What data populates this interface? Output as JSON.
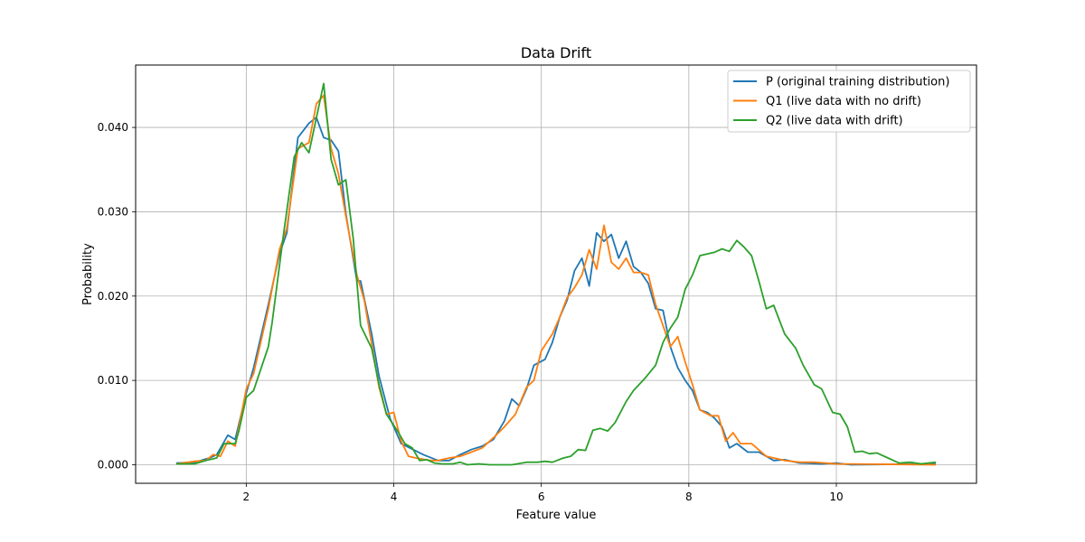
{
  "chart_data": {
    "type": "line",
    "title": "Data Drift",
    "xlabel": "Feature value",
    "ylabel": "Probability",
    "xlim": [
      0.5,
      11.9
    ],
    "ylim": [
      -0.0022,
      0.0474
    ],
    "xticks": [
      2,
      4,
      6,
      8,
      10
    ],
    "xtick_labels": [
      "2",
      "4",
      "6",
      "8",
      "10"
    ],
    "yticks": [
      0.0,
      0.01,
      0.02,
      0.03,
      0.04
    ],
    "ytick_labels": [
      "0.000",
      "0.010",
      "0.020",
      "0.030",
      "0.040"
    ],
    "grid": true,
    "legend_position": "top-right",
    "series": [
      {
        "name": "P (original training distribution)",
        "color": "#1f77b4",
        "points": [
          [
            1.05,
            0.0002
          ],
          [
            1.3,
            0.0003
          ],
          [
            1.5,
            0.0008
          ],
          [
            1.6,
            0.0012
          ],
          [
            1.75,
            0.0035
          ],
          [
            1.85,
            0.003
          ],
          [
            2.0,
            0.0085
          ],
          [
            2.1,
            0.0115
          ],
          [
            2.3,
            0.019
          ],
          [
            2.45,
            0.025
          ],
          [
            2.55,
            0.0275
          ],
          [
            2.7,
            0.0388
          ],
          [
            2.85,
            0.0405
          ],
          [
            2.95,
            0.0412
          ],
          [
            3.05,
            0.0388
          ],
          [
            3.15,
            0.0385
          ],
          [
            3.25,
            0.0372
          ],
          [
            3.35,
            0.0298
          ],
          [
            3.5,
            0.0218
          ],
          [
            3.55,
            0.0218
          ],
          [
            3.7,
            0.0155
          ],
          [
            3.8,
            0.0105
          ],
          [
            3.95,
            0.0055
          ],
          [
            4.1,
            0.0025
          ],
          [
            4.4,
            0.0012
          ],
          [
            4.6,
            0.0005
          ],
          [
            4.75,
            0.0005
          ],
          [
            4.9,
            0.0012
          ],
          [
            5.05,
            0.0018
          ],
          [
            5.2,
            0.0022
          ],
          [
            5.35,
            0.003
          ],
          [
            5.5,
            0.0052
          ],
          [
            5.6,
            0.0078
          ],
          [
            5.7,
            0.007
          ],
          [
            5.8,
            0.009
          ],
          [
            5.9,
            0.0118
          ],
          [
            6.05,
            0.0125
          ],
          [
            6.15,
            0.0145
          ],
          [
            6.25,
            0.0175
          ],
          [
            6.35,
            0.0195
          ],
          [
            6.45,
            0.023
          ],
          [
            6.55,
            0.0245
          ],
          [
            6.65,
            0.0212
          ],
          [
            6.75,
            0.0275
          ],
          [
            6.85,
            0.0265
          ],
          [
            6.95,
            0.0273
          ],
          [
            7.05,
            0.0245
          ],
          [
            7.15,
            0.0265
          ],
          [
            7.25,
            0.0235
          ],
          [
            7.35,
            0.0228
          ],
          [
            7.45,
            0.0215
          ],
          [
            7.55,
            0.0185
          ],
          [
            7.65,
            0.0183
          ],
          [
            7.75,
            0.014
          ],
          [
            7.85,
            0.0115
          ],
          [
            7.95,
            0.01
          ],
          [
            8.05,
            0.0088
          ],
          [
            8.15,
            0.0065
          ],
          [
            8.25,
            0.0062
          ],
          [
            8.35,
            0.0055
          ],
          [
            8.45,
            0.0045
          ],
          [
            8.55,
            0.002
          ],
          [
            8.65,
            0.0025
          ],
          [
            8.8,
            0.0015
          ],
          [
            8.95,
            0.0015
          ],
          [
            9.15,
            0.0005
          ],
          [
            9.3,
            0.0006
          ],
          [
            9.5,
            0.0002
          ],
          [
            9.8,
            0.0001
          ],
          [
            10.0,
            0.0002
          ],
          [
            10.2,
            0.0
          ],
          [
            11.35,
            0.0001
          ]
        ]
      },
      {
        "name": "Q1 (live data with no drift)",
        "color": "#ff7f0e",
        "points": [
          [
            1.05,
            0.0001
          ],
          [
            1.3,
            0.0004
          ],
          [
            1.45,
            0.0005
          ],
          [
            1.55,
            0.0012
          ],
          [
            1.65,
            0.001
          ],
          [
            1.75,
            0.0028
          ],
          [
            1.85,
            0.0022
          ],
          [
            2.0,
            0.009
          ],
          [
            2.1,
            0.0108
          ],
          [
            2.3,
            0.0185
          ],
          [
            2.45,
            0.0255
          ],
          [
            2.55,
            0.028
          ],
          [
            2.7,
            0.0375
          ],
          [
            2.85,
            0.0382
          ],
          [
            2.95,
            0.0428
          ],
          [
            3.05,
            0.0438
          ],
          [
            3.15,
            0.0375
          ],
          [
            3.25,
            0.0345
          ],
          [
            3.35,
            0.0295
          ],
          [
            3.5,
            0.0225
          ],
          [
            3.6,
            0.0195
          ],
          [
            3.8,
            0.0092
          ],
          [
            3.9,
            0.006
          ],
          [
            4.0,
            0.0062
          ],
          [
            4.1,
            0.0028
          ],
          [
            4.2,
            0.001
          ],
          [
            4.3,
            0.0008
          ],
          [
            4.5,
            0.0005
          ],
          [
            4.6,
            0.0005
          ],
          [
            4.75,
            0.0008
          ],
          [
            4.9,
            0.001
          ],
          [
            5.05,
            0.0015
          ],
          [
            5.2,
            0.002
          ],
          [
            5.35,
            0.0032
          ],
          [
            5.5,
            0.0045
          ],
          [
            5.65,
            0.006
          ],
          [
            5.8,
            0.0092
          ],
          [
            5.9,
            0.01
          ],
          [
            6.0,
            0.0135
          ],
          [
            6.15,
            0.0155
          ],
          [
            6.25,
            0.0175
          ],
          [
            6.35,
            0.0198
          ],
          [
            6.45,
            0.021
          ],
          [
            6.55,
            0.0225
          ],
          [
            6.65,
            0.0255
          ],
          [
            6.75,
            0.0232
          ],
          [
            6.85,
            0.0284
          ],
          [
            6.95,
            0.024
          ],
          [
            7.05,
            0.0232
          ],
          [
            7.15,
            0.0245
          ],
          [
            7.25,
            0.0228
          ],
          [
            7.35,
            0.0228
          ],
          [
            7.45,
            0.0225
          ],
          [
            7.55,
            0.019
          ],
          [
            7.65,
            0.0165
          ],
          [
            7.75,
            0.014
          ],
          [
            7.85,
            0.0152
          ],
          [
            7.95,
            0.0122
          ],
          [
            8.05,
            0.0095
          ],
          [
            8.15,
            0.0065
          ],
          [
            8.3,
            0.0058
          ],
          [
            8.4,
            0.0058
          ],
          [
            8.5,
            0.0028
          ],
          [
            8.6,
            0.0038
          ],
          [
            8.7,
            0.0025
          ],
          [
            8.85,
            0.0025
          ],
          [
            9.05,
            0.001
          ],
          [
            9.3,
            0.0005
          ],
          [
            9.5,
            0.0003
          ],
          [
            9.7,
            0.0003
          ],
          [
            10.0,
            0.0001
          ],
          [
            11.35,
            0.0
          ]
        ]
      },
      {
        "name": "Q2 (live data with drift)",
        "color": "#2ca02c",
        "points": [
          [
            1.05,
            0.0001
          ],
          [
            1.3,
            0.0001
          ],
          [
            1.45,
            0.0005
          ],
          [
            1.6,
            0.0008
          ],
          [
            1.7,
            0.0025
          ],
          [
            1.85,
            0.0025
          ],
          [
            1.9,
            0.004
          ],
          [
            2.0,
            0.008
          ],
          [
            2.1,
            0.0088
          ],
          [
            2.3,
            0.014
          ],
          [
            2.35,
            0.0168
          ],
          [
            2.5,
            0.027
          ],
          [
            2.65,
            0.0365
          ],
          [
            2.75,
            0.0382
          ],
          [
            2.85,
            0.037
          ],
          [
            3.05,
            0.0452
          ],
          [
            3.15,
            0.0362
          ],
          [
            3.25,
            0.0332
          ],
          [
            3.35,
            0.0338
          ],
          [
            3.45,
            0.0268
          ],
          [
            3.55,
            0.0165
          ],
          [
            3.7,
            0.0138
          ],
          [
            3.8,
            0.0095
          ],
          [
            3.9,
            0.006
          ],
          [
            4.05,
            0.004
          ],
          [
            4.15,
            0.0025
          ],
          [
            4.25,
            0.002
          ],
          [
            4.35,
            0.0005
          ],
          [
            4.45,
            0.0006
          ],
          [
            4.55,
            0.0002
          ],
          [
            4.65,
            0.0001
          ],
          [
            4.8,
            0.0001
          ],
          [
            4.9,
            0.0003
          ],
          [
            5.0,
            0.0
          ],
          [
            5.15,
            0.0001
          ],
          [
            5.3,
            0.0
          ],
          [
            5.6,
            0.0
          ],
          [
            5.8,
            0.0003
          ],
          [
            5.95,
            0.0003
          ],
          [
            6.05,
            0.0004
          ],
          [
            6.15,
            0.0003
          ],
          [
            6.3,
            0.0008
          ],
          [
            6.4,
            0.001
          ],
          [
            6.5,
            0.0018
          ],
          [
            6.6,
            0.0017
          ],
          [
            6.7,
            0.0041
          ],
          [
            6.8,
            0.0043
          ],
          [
            6.9,
            0.004
          ],
          [
            7.0,
            0.005
          ],
          [
            7.15,
            0.0075
          ],
          [
            7.25,
            0.0088
          ],
          [
            7.4,
            0.0102
          ],
          [
            7.55,
            0.0118
          ],
          [
            7.65,
            0.0145
          ],
          [
            7.75,
            0.0162
          ],
          [
            7.85,
            0.0175
          ],
          [
            7.95,
            0.0208
          ],
          [
            8.05,
            0.0225
          ],
          [
            8.15,
            0.0248
          ],
          [
            8.25,
            0.025
          ],
          [
            8.35,
            0.0252
          ],
          [
            8.45,
            0.0256
          ],
          [
            8.55,
            0.0253
          ],
          [
            8.65,
            0.0266
          ],
          [
            8.75,
            0.0258
          ],
          [
            8.85,
            0.0248
          ],
          [
            8.95,
            0.0218
          ],
          [
            9.05,
            0.0185
          ],
          [
            9.15,
            0.0189
          ],
          [
            9.3,
            0.0155
          ],
          [
            9.45,
            0.0138
          ],
          [
            9.55,
            0.0118
          ],
          [
            9.7,
            0.0095
          ],
          [
            9.8,
            0.009
          ],
          [
            9.95,
            0.0062
          ],
          [
            10.05,
            0.006
          ],
          [
            10.15,
            0.0045
          ],
          [
            10.25,
            0.0015
          ],
          [
            10.35,
            0.0016
          ],
          [
            10.45,
            0.0013
          ],
          [
            10.55,
            0.0014
          ],
          [
            10.7,
            0.0008
          ],
          [
            10.85,
            0.0002
          ],
          [
            11.0,
            0.0003
          ],
          [
            11.15,
            0.0001
          ],
          [
            11.35,
            0.0003
          ]
        ]
      }
    ]
  }
}
